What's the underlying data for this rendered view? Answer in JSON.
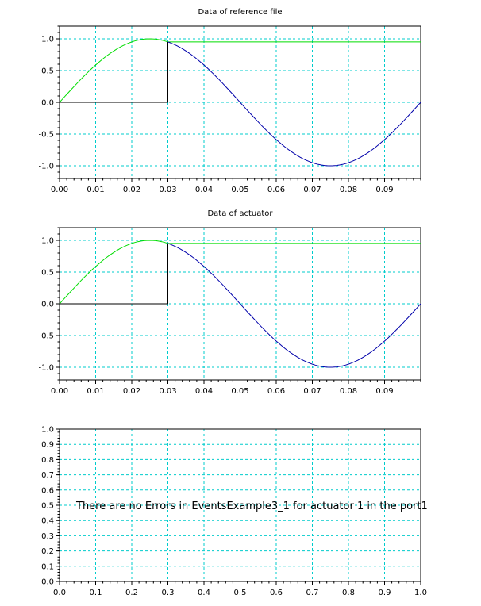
{
  "chart_data": [
    {
      "type": "line",
      "title": "Data of reference file",
      "xlabel": "",
      "ylabel": "",
      "xlim": [
        0,
        0.1
      ],
      "ylim": [
        -1.2,
        1.2
      ],
      "xticks": [
        "0.00",
        "0.01",
        "0.02",
        "0.03",
        "0.04",
        "0.05",
        "0.06",
        "0.07",
        "0.08",
        "0.09"
      ],
      "yticks": [
        "1.0",
        "0.5",
        "0.0",
        "-0.5",
        "-1.0"
      ],
      "grid": true,
      "series": [
        {
          "color": "#00dd00",
          "x": [
            0,
            0.005,
            0.01,
            0.015,
            0.02,
            0.025,
            0.03,
            0.031,
            0.1
          ],
          "y": [
            0,
            0.309,
            0.588,
            0.809,
            0.951,
            1.0,
            0.951,
            0.951,
            0.951
          ]
        },
        {
          "color": "#0000aa",
          "x": [
            0.03,
            0.035,
            0.04,
            0.045,
            0.05,
            0.055,
            0.06,
            0.065,
            0.07,
            0.075,
            0.08,
            0.085,
            0.09,
            0.095,
            0.1
          ],
          "y": [
            0.951,
            0.809,
            0.588,
            0.309,
            0.0,
            -0.309,
            -0.588,
            -0.809,
            -0.951,
            -1.0,
            -0.951,
            -0.809,
            -0.588,
            -0.309,
            0.0
          ]
        },
        {
          "color": "#000000",
          "x": [
            0,
            0.03,
            0.03
          ],
          "y": [
            0,
            0,
            0.951
          ]
        }
      ]
    },
    {
      "type": "line",
      "title": "Data of actuator",
      "xlabel": "",
      "ylabel": "",
      "xlim": [
        0,
        0.1
      ],
      "ylim": [
        -1.2,
        1.2
      ],
      "xticks": [
        "0.00",
        "0.01",
        "0.02",
        "0.03",
        "0.04",
        "0.05",
        "0.06",
        "0.07",
        "0.08",
        "0.09"
      ],
      "yticks": [
        "1.0",
        "0.5",
        "0.0",
        "-0.5",
        "-1.0"
      ],
      "grid": true,
      "series": [
        {
          "color": "#00dd00",
          "x": [
            0,
            0.005,
            0.01,
            0.015,
            0.02,
            0.025,
            0.03,
            0.031,
            0.1
          ],
          "y": [
            0,
            0.309,
            0.588,
            0.809,
            0.951,
            1.0,
            0.951,
            0.951,
            0.951
          ]
        },
        {
          "color": "#0000aa",
          "x": [
            0.03,
            0.035,
            0.04,
            0.045,
            0.05,
            0.055,
            0.06,
            0.065,
            0.07,
            0.075,
            0.08,
            0.085,
            0.09,
            0.095,
            0.1
          ],
          "y": [
            0.951,
            0.809,
            0.588,
            0.309,
            0.0,
            -0.309,
            -0.588,
            -0.809,
            -0.951,
            -1.0,
            -0.951,
            -0.809,
            -0.588,
            -0.309,
            0.0
          ]
        },
        {
          "color": "#000000",
          "x": [
            0,
            0.03,
            0.03
          ],
          "y": [
            0,
            0,
            0.951
          ]
        }
      ]
    },
    {
      "type": "line",
      "title": "",
      "xlabel": "",
      "ylabel": "",
      "xlim": [
        0,
        1
      ],
      "ylim": [
        0,
        1
      ],
      "xticks": [
        "0.0",
        "0.1",
        "0.2",
        "0.3",
        "0.4",
        "0.5",
        "0.6",
        "0.7",
        "0.8",
        "0.9",
        "1.0"
      ],
      "yticks": [
        "1.0",
        "0.9",
        "0.8",
        "0.7",
        "0.6",
        "0.5",
        "0.4",
        "0.3",
        "0.2",
        "0.1",
        "0.0"
      ],
      "grid": true,
      "annotation": "There are no Errors in EventsExample3_1 for actuator 1 in the port1",
      "series": []
    }
  ]
}
